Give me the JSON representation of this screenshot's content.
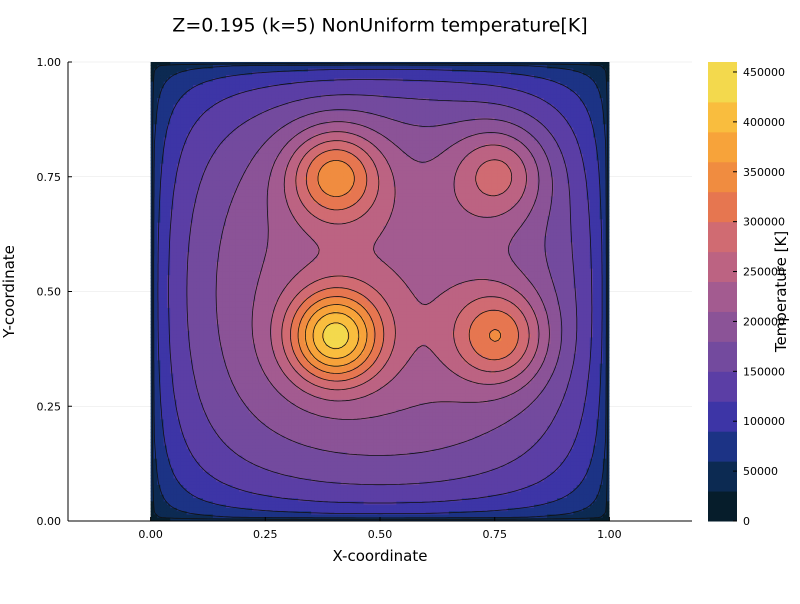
{
  "chart_data": {
    "type": "contour",
    "title": "Z=0.195 (k=5) NonUniform temperature[K]",
    "xlabel": "X-coordinate",
    "ylabel": "Y-coordinate",
    "colorbar_label": "Temperature [K]",
    "xlim": [
      -0.18,
      1.18
    ],
    "ylim": [
      0.0,
      1.0
    ],
    "data_domain": {
      "x": [
        0.0,
        1.0
      ],
      "y": [
        0.0,
        1.0
      ]
    },
    "x_ticks": [
      {
        "value": 0.0,
        "label": "0.00"
      },
      {
        "value": 0.25,
        "label": "0.25"
      },
      {
        "value": 0.5,
        "label": "0.50"
      },
      {
        "value": 0.75,
        "label": "0.75"
      },
      {
        "value": 1.0,
        "label": "1.00"
      }
    ],
    "y_ticks": [
      {
        "value": 0.0,
        "label": "0.00"
      },
      {
        "value": 0.25,
        "label": "0.25"
      },
      {
        "value": 0.5,
        "label": "0.50"
      },
      {
        "value": 0.75,
        "label": "0.75"
      },
      {
        "value": 1.0,
        "label": "1.00"
      }
    ],
    "colorbar": {
      "min": 0,
      "max": 460000,
      "ticks": [
        {
          "value": 0,
          "label": "0"
        },
        {
          "value": 50000,
          "label": "50000"
        },
        {
          "value": 100000,
          "label": "100000"
        },
        {
          "value": 150000,
          "label": "150000"
        },
        {
          "value": 200000,
          "label": "200000"
        },
        {
          "value": 250000,
          "label": "250000"
        },
        {
          "value": 300000,
          "label": "300000"
        },
        {
          "value": 350000,
          "label": "350000"
        },
        {
          "value": 400000,
          "label": "400000"
        },
        {
          "value": 450000,
          "label": "450000"
        }
      ],
      "levels": [
        0,
        30000,
        60000,
        90000,
        120000,
        150000,
        180000,
        210000,
        240000,
        270000,
        300000,
        330000,
        360000,
        390000,
        420000,
        460000
      ],
      "colors": [
        "#061d2b",
        "#0c2a52",
        "#1c3385",
        "#3d35a6",
        "#5b3ea5",
        "#734a9e",
        "#8b5397",
        "#a35b90",
        "#bc6382",
        "#d06b72",
        "#e67650",
        "#f08c40",
        "#f7a33a",
        "#f9bd3e",
        "#f3d94d",
        "#e6f65c"
      ]
    },
    "grid": true,
    "peaks": [
      {
        "x": 0.4,
        "y": 0.4,
        "value": 450000
      },
      {
        "x": 0.4,
        "y": 0.76,
        "value": 400000
      },
      {
        "x": 0.765,
        "y": 0.4,
        "value": 380000
      },
      {
        "x": 0.765,
        "y": 0.765,
        "value": 360000
      }
    ],
    "background_value": 235000,
    "boundary_value": 0
  }
}
